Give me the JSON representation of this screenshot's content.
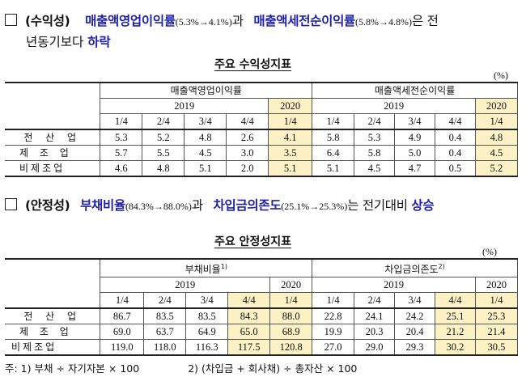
{
  "section1": {
    "label": "(수익성)",
    "metric1": "매출액영업이익률",
    "metric1_change": "(5.3%→4.1%)",
    "conj": "과",
    "metric2": "매출액세전순이익률",
    "metric2_change": "(5.8%→4.8%)",
    "tail": "은 전",
    "line2_prefix": "년동기보다",
    "line2_highlight": "하락"
  },
  "table1": {
    "title": "주요 수익성지표",
    "unit": "(%)",
    "group1": "매출액영업이익률",
    "group2": "매출액세전순이익률",
    "year1": "2019",
    "year2": "2020",
    "quarters": [
      "1/4",
      "2/4",
      "3/4",
      "4/4",
      "1/4",
      "1/4",
      "2/4",
      "3/4",
      "4/4",
      "1/4"
    ],
    "rows": [
      {
        "label": "전 산 업",
        "values": [
          "5.3",
          "5.2",
          "4.8",
          "2.6",
          "4.1",
          "5.8",
          "5.3",
          "4.9",
          "0.4",
          "4.8"
        ]
      },
      {
        "label": "제 조 업",
        "values": [
          "5.7",
          "5.5",
          "4.5",
          "3.0",
          "3.5",
          "6.4",
          "5.8",
          "5.0",
          "0.4",
          "4.5"
        ]
      },
      {
        "label": "비제조업",
        "values": [
          "4.6",
          "4.8",
          "5.1",
          "2.0",
          "5.1",
          "5.1",
          "4.5",
          "4.7",
          "0.5",
          "5.2"
        ]
      }
    ]
  },
  "section2": {
    "label": "(안정성)",
    "metric1": "부채비율",
    "metric1_change": "(84.3%→88.0%)",
    "conj": "과",
    "metric2": "차입금의존도",
    "metric2_change": "(25.1%→25.3%)",
    "tail": "는 전기대비",
    "highlight": "상승"
  },
  "table2": {
    "title": "주요 안정성지표",
    "unit": "(%)",
    "group1": "부채비율",
    "group1_sup": "1)",
    "group2": "차입금의존도",
    "group2_sup": "2)",
    "year1": "2019",
    "year2": "2020",
    "quarters": [
      "1/4",
      "2/4",
      "3/4",
      "4/4",
      "1/4",
      "1/4",
      "2/4",
      "3/4",
      "4/4",
      "1/4"
    ],
    "rows": [
      {
        "label": "전 산 업",
        "values": [
          "86.7",
          "83.5",
          "83.5",
          "84.3",
          "88.0",
          "22.8",
          "24.1",
          "24.2",
          "25.1",
          "25.3"
        ]
      },
      {
        "label": "제 조 업",
        "values": [
          "69.0",
          "63.7",
          "64.9",
          "65.0",
          "68.9",
          "19.9",
          "20.3",
          "20.4",
          "21.2",
          "21.4"
        ]
      },
      {
        "label": "비제조업",
        "values": [
          "119.0",
          "118.0",
          "116.3",
          "117.5",
          "120.8",
          "27.0",
          "29.0",
          "29.3",
          "30.2",
          "30.5"
        ]
      }
    ]
  },
  "notes": {
    "note1": "주: 1) 부채 ÷ 자기자본 × 100",
    "note2": "2) (차입금 + 회사채) ÷ 총자산 × 100"
  },
  "colors": {
    "highlight_text": "#1f1fa8",
    "cell_highlight": "#fdf2c6"
  }
}
